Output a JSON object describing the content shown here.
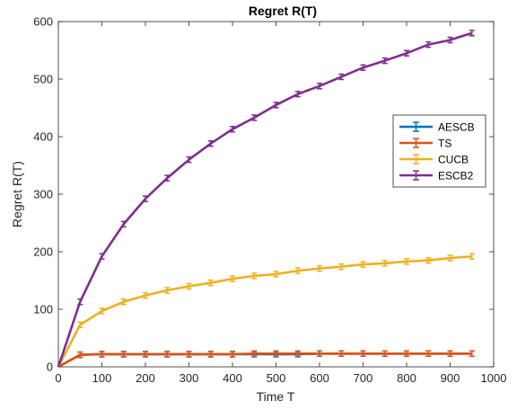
{
  "chart_data": {
    "type": "line",
    "title": "Regret R(T)",
    "xlabel": "Time T",
    "ylabel": "Regret R(T)",
    "xlim": [
      0,
      1000
    ],
    "ylim": [
      0,
      600
    ],
    "xticks": [
      0,
      100,
      200,
      300,
      400,
      500,
      600,
      700,
      800,
      900,
      1000
    ],
    "yticks": [
      0,
      100,
      200,
      300,
      400,
      500,
      600
    ],
    "grid": false,
    "legend_position": "right",
    "x": [
      0,
      50,
      100,
      150,
      200,
      250,
      300,
      350,
      400,
      450,
      500,
      550,
      600,
      650,
      700,
      750,
      800,
      850,
      900,
      950
    ],
    "series": [
      {
        "name": "AESCB",
        "color": "#0072BD",
        "values": [
          0,
          21,
          22,
          22,
          22,
          22,
          22,
          22,
          22,
          22,
          22,
          22,
          23,
          23,
          23,
          23,
          23,
          23,
          23,
          23
        ]
      },
      {
        "name": "TS",
        "color": "#D95319",
        "values": [
          0,
          21,
          22,
          22,
          22,
          22,
          22,
          22,
          22,
          23,
          23,
          23,
          23,
          23,
          23,
          23,
          23,
          23,
          23,
          23
        ]
      },
      {
        "name": "CUCB",
        "color": "#EDB120",
        "values": [
          0,
          73,
          97,
          113,
          124,
          133,
          140,
          146,
          153,
          158,
          161,
          167,
          171,
          174,
          178,
          180,
          183,
          185,
          189,
          192
        ]
      },
      {
        "name": "ESCB2",
        "color": "#7E2F8E",
        "values": [
          0,
          113,
          192,
          248,
          292,
          328,
          360,
          388,
          413,
          433,
          455,
          474,
          488,
          504,
          520,
          532,
          545,
          560,
          568,
          580
        ]
      }
    ]
  }
}
